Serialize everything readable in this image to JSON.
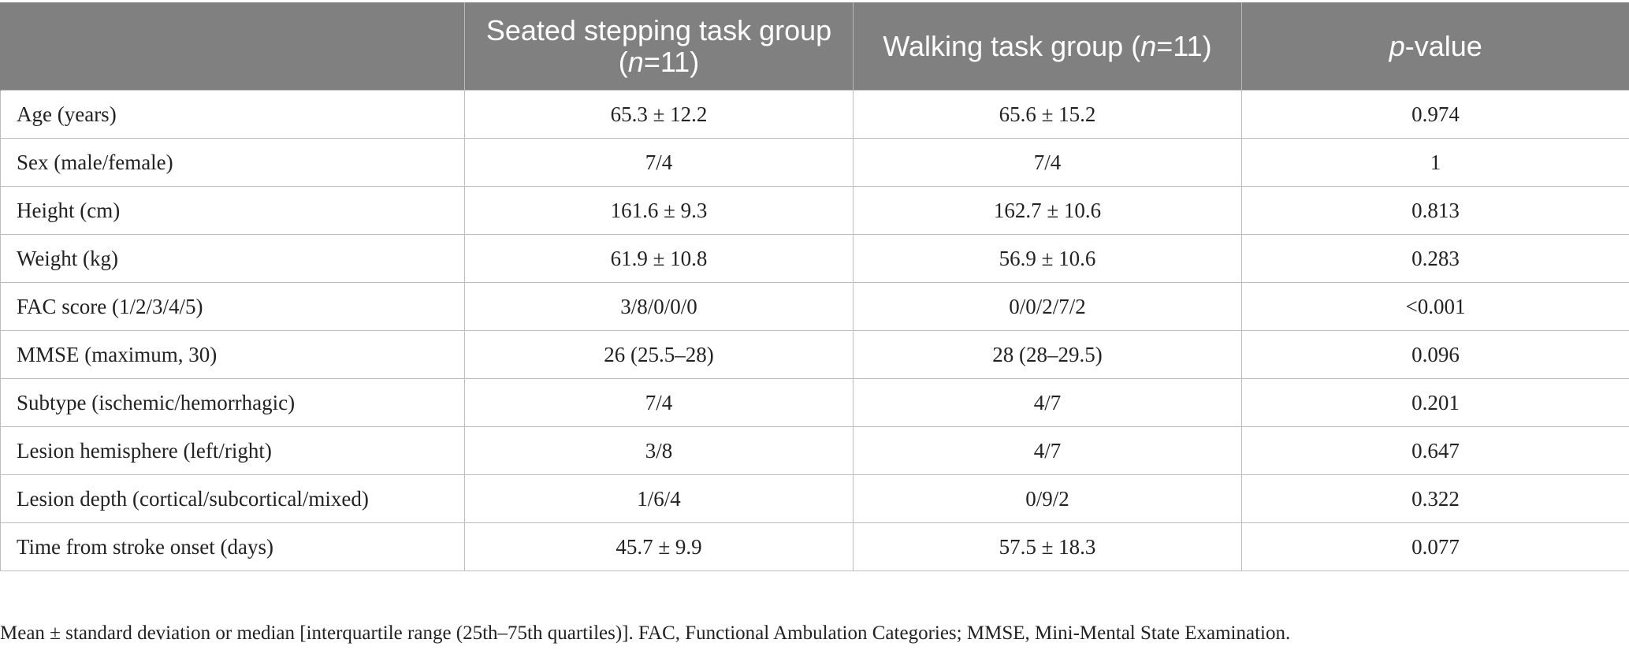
{
  "table": {
    "headers": [
      {
        "pre": "",
        "ital": "",
        "post": ""
      },
      {
        "pre": "Seated stepping task group (",
        "ital": "n",
        "post": "=11)"
      },
      {
        "pre": "Walking task group (",
        "ital": "n",
        "post": "=11)"
      },
      {
        "pre": "",
        "ital": "p",
        "post": "-value"
      }
    ],
    "rows": [
      {
        "label": "Age (years)",
        "seated": "65.3 ± 12.2",
        "walking": "65.6 ± 15.2",
        "p": "0.974"
      },
      {
        "label": "Sex (male/female)",
        "seated": "7/4",
        "walking": "7/4",
        "p": "1"
      },
      {
        "label": "Height (cm)",
        "seated": "161.6 ± 9.3",
        "walking": "162.7 ± 10.6",
        "p": "0.813"
      },
      {
        "label": "Weight (kg)",
        "seated": "61.9 ± 10.8",
        "walking": "56.9 ± 10.6",
        "p": "0.283"
      },
      {
        "label": "FAC score (1/2/3/4/5)",
        "seated": "3/8/0/0/0",
        "walking": "0/0/2/7/2",
        "p": "<0.001"
      },
      {
        "label": "MMSE (maximum, 30)",
        "seated": "26 (25.5–28)",
        "walking": "28 (28–29.5)",
        "p": "0.096"
      },
      {
        "label": "Subtype (ischemic/hemorrhagic)",
        "seated": "7/4",
        "walking": "4/7",
        "p": "0.201"
      },
      {
        "label": "Lesion hemisphere (left/right)",
        "seated": "3/8",
        "walking": "4/7",
        "p": "0.647"
      },
      {
        "label": "Lesion depth (cortical/subcortical/mixed)",
        "seated": "1/6/4",
        "walking": "0/9/2",
        "p": "0.322"
      },
      {
        "label": "Time from stroke onset (days)",
        "seated": "45.7 ± 9.9",
        "walking": "57.5 ± 18.3",
        "p": "0.077"
      }
    ]
  },
  "footnote": "Mean ± standard deviation or median [interquartile range (25th–75th quartiles)]. FAC, Functional Ambulation Categories; MMSE, Mini-Mental State Examination."
}
